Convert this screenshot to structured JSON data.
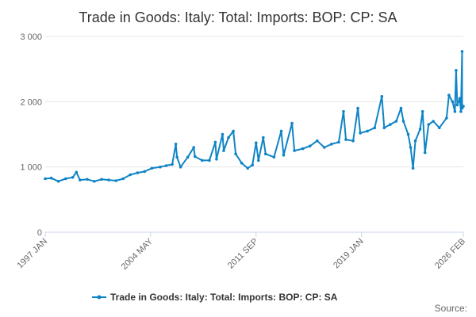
{
  "chart_data": {
    "type": "line",
    "title": "Trade in Goods: Italy: Total: Imports: BOP: CP: SA",
    "xlabel": "",
    "ylabel": "",
    "ylim": [
      0,
      3000
    ],
    "yticks": [
      0,
      1000,
      2000,
      3000
    ],
    "ytick_labels": [
      "0",
      "1 000",
      "2 000",
      "3 000"
    ],
    "x_range": [
      "1997 JAN",
      "2026 FEB"
    ],
    "xtick_labels": [
      "1997 JAN",
      "2004 MAY",
      "2011 SEP",
      "2019 JAN",
      "2026 FEB"
    ],
    "grid": true,
    "legend_position": "bottom",
    "series": [
      {
        "name": "Trade in Goods: Italy: Total: Imports: BOP: CP: SA",
        "color": "#0f84c6",
        "points": [
          [
            "1997 JAN",
            820
          ],
          [
            "1997 JUN",
            830
          ],
          [
            "1997 DEC",
            780
          ],
          [
            "1998 JUN",
            820
          ],
          [
            "1998 DEC",
            840
          ],
          [
            "1999 MAR",
            920
          ],
          [
            "1999 JUN",
            800
          ],
          [
            "1999 DEC",
            810
          ],
          [
            "2000 JUN",
            780
          ],
          [
            "2000 DEC",
            810
          ],
          [
            "2001 JUN",
            800
          ],
          [
            "2001 DEC",
            790
          ],
          [
            "2002 JUN",
            820
          ],
          [
            "2002 DEC",
            880
          ],
          [
            "2003 JUN",
            910
          ],
          [
            "2003 DEC",
            930
          ],
          [
            "2004 JUN",
            980
          ],
          [
            "2005 JAN",
            1000
          ],
          [
            "2005 JUN",
            1020
          ],
          [
            "2005 NOV",
            1040
          ],
          [
            "2006 FEB",
            1350
          ],
          [
            "2006 MAR",
            1150
          ],
          [
            "2006 JUN",
            1000
          ],
          [
            "2006 DEC",
            1150
          ],
          [
            "2007 MAY",
            1300
          ],
          [
            "2007 JUN",
            1160
          ],
          [
            "2007 DEC",
            1100
          ],
          [
            "2008 JUN",
            1100
          ],
          [
            "2008 NOV",
            1380
          ],
          [
            "2008 DEC",
            1120
          ],
          [
            "2009 MAY",
            1500
          ],
          [
            "2009 JUN",
            1250
          ],
          [
            "2009 OCT",
            1450
          ],
          [
            "2010 FEB",
            1550
          ],
          [
            "2010 APR",
            1200
          ],
          [
            "2010 SEP",
            1060
          ],
          [
            "2011 FEB",
            980
          ],
          [
            "2011 JUN",
            1030
          ],
          [
            "2011 SEP",
            1370
          ],
          [
            "2011 NOV",
            1100
          ],
          [
            "2012 MAR",
            1450
          ],
          [
            "2012 MAY",
            1200
          ],
          [
            "2012 DEC",
            1150
          ],
          [
            "2013 JUN",
            1550
          ],
          [
            "2013 AUG",
            1180
          ],
          [
            "2014 MAR",
            1670
          ],
          [
            "2014 MAY",
            1250
          ],
          [
            "2014 DEC",
            1280
          ],
          [
            "2015 JUN",
            1320
          ],
          [
            "2015 DEC",
            1400
          ],
          [
            "2016 JUN",
            1300
          ],
          [
            "2016 DEC",
            1350
          ],
          [
            "2017 JUN",
            1380
          ],
          [
            "2017 OCT",
            1850
          ],
          [
            "2017 DEC",
            1420
          ],
          [
            "2018 JUN",
            1400
          ],
          [
            "2018 OCT",
            1900
          ],
          [
            "2018 DEC",
            1520
          ],
          [
            "2019 JUN",
            1550
          ],
          [
            "2019 DEC",
            1600
          ],
          [
            "2020 JUN",
            2080
          ],
          [
            "2020 AUG",
            1600
          ],
          [
            "2021 JAN",
            1650
          ],
          [
            "2021 JUN",
            1700
          ],
          [
            "2021 OCT",
            1900
          ],
          [
            "2021 DEC",
            1700
          ],
          [
            "2022 APR",
            1500
          ],
          [
            "2022 JUN",
            1300
          ],
          [
            "2022 AUG",
            980
          ],
          [
            "2022 OCT",
            1400
          ],
          [
            "2023 FEB",
            1580
          ],
          [
            "2023 APR",
            1850
          ],
          [
            "2023 JUN",
            1220
          ],
          [
            "2023 SEP",
            1650
          ],
          [
            "2024 JAN",
            1700
          ],
          [
            "2024 JUN",
            1600
          ],
          [
            "2024 DEC",
            1750
          ],
          [
            "2025 FEB",
            2100
          ],
          [
            "2025 MAY",
            2000
          ],
          [
            "2025 JUL",
            1850
          ],
          [
            "2025 AUG",
            2480
          ],
          [
            "2025 SEP",
            1950
          ],
          [
            "2025 NOV",
            2050
          ],
          [
            "2025 DEC",
            1850
          ],
          [
            "2026 JAN",
            2770
          ],
          [
            "2026 JAN",
            1900
          ],
          [
            "2026 FEB",
            1930
          ]
        ]
      }
    ],
    "source_label": "Source:"
  }
}
